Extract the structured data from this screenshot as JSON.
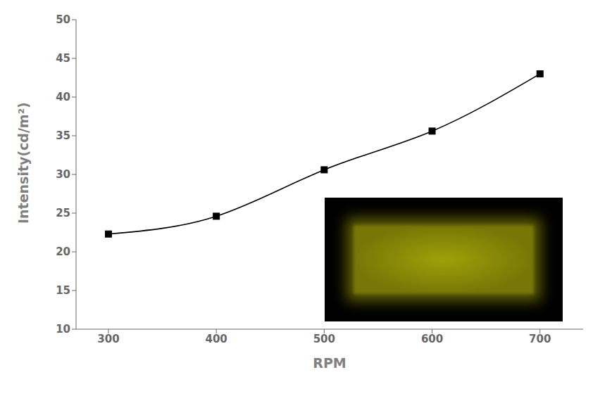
{
  "chart_data": {
    "type": "line",
    "x": [
      300,
      400,
      500,
      600,
      700
    ],
    "values": [
      22.3,
      24.6,
      30.6,
      35.6,
      43.0
    ],
    "xlim": [
      270,
      740
    ],
    "ylim": [
      10,
      50
    ],
    "xticks": [
      300,
      400,
      500,
      600,
      700
    ],
    "yticks": [
      10,
      15,
      20,
      25,
      30,
      35,
      40,
      45,
      50
    ],
    "xlabel": "RPM",
    "ylabel": "Intensity(cd/m²)",
    "color": "black",
    "marker": "square",
    "line_style": "solid",
    "grid": false
  }
}
